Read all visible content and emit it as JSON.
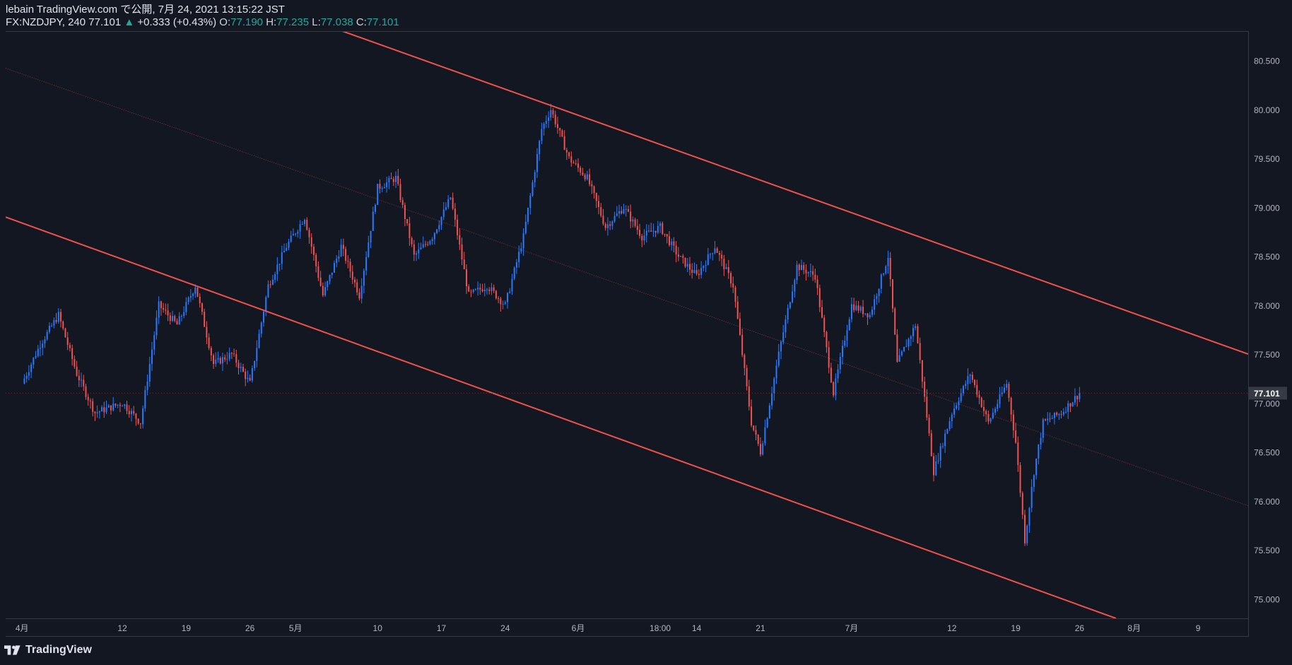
{
  "header": {
    "publisher": "lebain TradingView.com で公開, 7月 24, 2021 13:15:22 JST",
    "symbol": "FX:NZDJPY, 240",
    "last": "77.101",
    "change": "+0.333 (+0.43%)",
    "o_label": "O:",
    "o": "77.190",
    "h_label": "H:",
    "h": "77.235",
    "l_label": "L:",
    "l": "77.038",
    "c_label": "C:",
    "c": "77.101"
  },
  "footer": {
    "brand": "TradingView"
  },
  "colors": {
    "background": "#131722",
    "up": "#2979ff",
    "down": "#ef5350",
    "channel": "#f0514d",
    "mid": "#7a3a3f",
    "grid_text": "#b2b5be",
    "price_tag": "#363a45"
  },
  "chart_data": {
    "type": "line",
    "series_style": "candlestick",
    "instrument": "FX:NZDJPY",
    "interval": "240",
    "price_axis": {
      "ticks": [
        80.5,
        80.0,
        79.5,
        79.0,
        78.5,
        78.0,
        77.5,
        77.0,
        76.5,
        76.0,
        75.5,
        75.0
      ],
      "tick_labels": [
        "80.500",
        "80.000",
        "79.500",
        "79.000",
        "78.500",
        "78.000",
        "77.500",
        "77.000",
        "76.500",
        "76.000",
        "75.500",
        "75.000"
      ],
      "last_price_label": "77.101",
      "last_price": 77.101,
      "range": [
        74.8,
        80.8
      ]
    },
    "time_axis": {
      "labels": [
        "4月",
        "12",
        "19",
        "26",
        "5月",
        "10",
        "17",
        "24",
        "6月",
        "18:00",
        "14",
        "21",
        "7月",
        "12",
        "19",
        "26",
        "8月",
        "9"
      ],
      "label_day_index": [
        0,
        11,
        18,
        25,
        30,
        39,
        46,
        53,
        61,
        70,
        74,
        81,
        91,
        102,
        109,
        116,
        122,
        129
      ],
      "range_days": [
        -1.8,
        134.5
      ]
    },
    "price_path": {
      "day": [
        0,
        2,
        4,
        6,
        8,
        11,
        13,
        15,
        17,
        19,
        21,
        23,
        25,
        27,
        29,
        31,
        33,
        35,
        37,
        39,
        41,
        43,
        45,
        47,
        49,
        51,
        53,
        55,
        57,
        58,
        60,
        62,
        64,
        66,
        68,
        70,
        72,
        74,
        76,
        78,
        80,
        81,
        83,
        85,
        87,
        89,
        91,
        93,
        95,
        96,
        98,
        100,
        102,
        104,
        106,
        108,
        109,
        110,
        111,
        112,
        114,
        116
      ],
      "close": [
        77.2,
        77.6,
        77.9,
        77.3,
        76.9,
        77.0,
        76.8,
        78.0,
        77.8,
        78.2,
        77.4,
        77.5,
        77.2,
        78.2,
        78.6,
        78.9,
        78.1,
        78.6,
        78.1,
        79.2,
        79.3,
        78.5,
        78.7,
        79.1,
        78.1,
        78.2,
        78.0,
        78.7,
        79.8,
        80.0,
        79.5,
        79.3,
        78.8,
        79.0,
        78.7,
        78.8,
        78.5,
        78.3,
        78.6,
        78.2,
        76.8,
        76.5,
        77.5,
        78.4,
        78.3,
        77.1,
        78.0,
        77.9,
        78.5,
        77.4,
        77.8,
        76.3,
        76.9,
        77.3,
        76.8,
        77.2,
        76.6,
        75.6,
        76.3,
        76.8,
        76.9,
        77.1
      ]
    },
    "channel": {
      "upper": {
        "x": [
          30.0,
          134.5
        ],
        "y": [
          80.97,
          77.5
        ]
      },
      "lower": {
        "x": [
          -1.8,
          120.0
        ],
        "y": [
          78.9,
          74.8
        ]
      },
      "mid": {
        "x": [
          -1.8,
          134.5
        ],
        "y": [
          80.42,
          75.95
        ]
      }
    }
  }
}
